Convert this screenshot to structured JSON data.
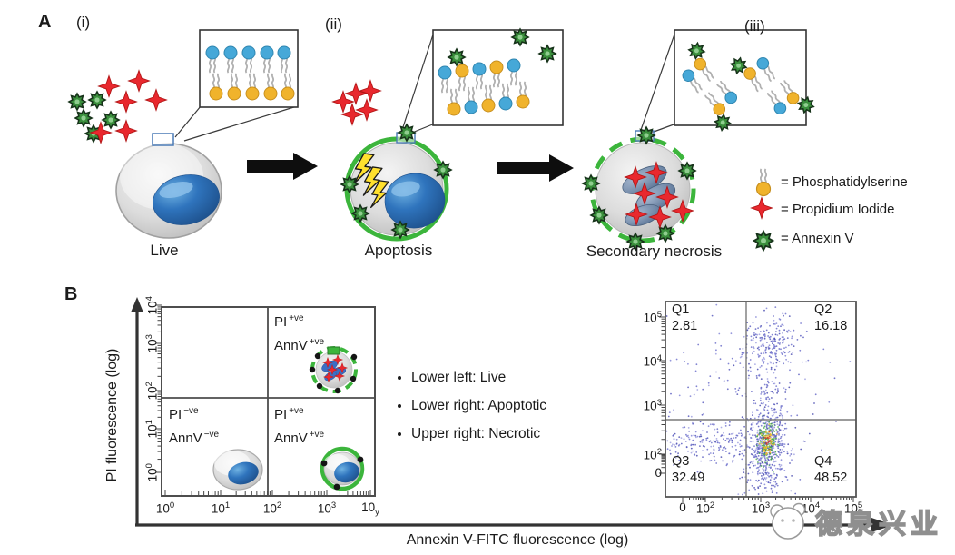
{
  "panel_a": {
    "label": "A",
    "stages": [
      {
        "numeral": "(i)",
        "name": "Live"
      },
      {
        "numeral": "(ii)",
        "name": "Apoptosis"
      },
      {
        "numeral": "(iii)",
        "name": "Secondary necrosis"
      }
    ],
    "legend": [
      {
        "symbol": "phosphatidylserine-icon",
        "label": "= Phosphatidylserine"
      },
      {
        "symbol": "propidium-iodide-icon",
        "label": "= Propidium Iodide"
      },
      {
        "symbol": "annexin-v-icon",
        "label": "= Annexin V"
      }
    ]
  },
  "panel_b": {
    "label": "B",
    "bullets": [
      "Lower left: Live",
      "Lower right: Apoptotic",
      "Upper right: Necrotic"
    ],
    "quadrant_labels": {
      "upper_right": {
        "l1": "PI",
        "l1s": "+ve",
        "l2": "AnnV",
        "l2s": "+ve"
      },
      "lower_left": {
        "l1": "PI",
        "l1s": "−ve",
        "l2": "AnnV",
        "l2s": "−ve"
      },
      "lower_right": {
        "l1": "PI",
        "l1s": "+ve",
        "l2": "AnnV",
        "l2s": "+ve"
      }
    }
  },
  "chart_data": [
    {
      "type": "table",
      "title": "Annexin V-FITC / PI quadrant schematic",
      "xlabel": "Annexin V-FITC fluorescence (log)",
      "ylabel": "PI fluorescence (log)",
      "xticks": [
        {
          "t": "10",
          "exp": "0"
        },
        {
          "t": "10",
          "exp": "1"
        },
        {
          "t": "10",
          "exp": "2"
        },
        {
          "t": "10",
          "exp": "3"
        },
        {
          "t": "10",
          "sub": "y"
        }
      ],
      "yticks": [
        {
          "t": "10",
          "exp": "4"
        },
        {
          "t": "10",
          "exp": "3"
        },
        {
          "t": "10",
          "exp": "2"
        },
        {
          "t": "10",
          "exp": "1"
        },
        {
          "t": "10",
          "exp": "0"
        }
      ],
      "quadrants": [
        {
          "position": "upper_right",
          "markers": "PI +ve, AnnV +ve",
          "cell": "necrotic"
        },
        {
          "position": "lower_left",
          "markers": "PI −ve, AnnV −ve",
          "cell": "live"
        },
        {
          "position": "lower_right",
          "markers": "PI +ve, AnnV +ve",
          "cell": "apoptotic"
        }
      ],
      "legend_position": "none",
      "grid": false
    },
    {
      "type": "scatter",
      "title": "Flow cytometry dot plot",
      "xticks": [
        {
          "t": "0"
        },
        {
          "t": "10",
          "exp": "2"
        },
        {
          "t": "10",
          "exp": "3"
        },
        {
          "t": "10",
          "exp": "4"
        },
        {
          "t": "10",
          "exp": "5"
        }
      ],
      "yticks": [
        {
          "t": "10",
          "exp": "5"
        },
        {
          "t": "10",
          "exp": "4"
        },
        {
          "t": "10",
          "exp": "3"
        },
        {
          "t": "10",
          "exp": "2"
        },
        {
          "t": "0"
        }
      ],
      "quadrant_stats": [
        {
          "name": "Q1",
          "value": "2.81"
        },
        {
          "name": "Q2",
          "value": "16.18"
        },
        {
          "name": "Q3",
          "value": "32.49"
        },
        {
          "name": "Q4",
          "value": "48.52"
        }
      ],
      "grid": false,
      "clusters": [
        {
          "x": 0.538,
          "y": 0.721,
          "sx": 0.052,
          "sy": 0.093,
          "n": 420,
          "color": "blue"
        },
        {
          "x": 0.533,
          "y": 0.726,
          "sx": 0.031,
          "sy": 0.056,
          "n": 130,
          "color": "green"
        },
        {
          "x": 0.533,
          "y": 0.726,
          "sx": 0.018,
          "sy": 0.033,
          "n": 55,
          "color": "yellow"
        },
        {
          "x": 0.533,
          "y": 0.721,
          "sx": 0.01,
          "sy": 0.019,
          "n": 16,
          "color": "red"
        },
        {
          "x": 0.552,
          "y": 0.209,
          "sx": 0.081,
          "sy": 0.065,
          "n": 170,
          "color": "blue"
        },
        {
          "x": 0.524,
          "y": 0.447,
          "sx": 0.052,
          "sy": 0.14,
          "n": 130,
          "color": "blue"
        },
        {
          "x": 0.214,
          "y": 0.73,
          "sx": 0.19,
          "sy": 0.051,
          "n": 230,
          "color": "blue"
        },
        {
          "x": 0.519,
          "y": 0.907,
          "sx": 0.067,
          "sy": 0.06,
          "n": 90,
          "color": "blue"
        },
        {
          "x": 0.248,
          "y": 0.363,
          "sx": 0.2,
          "sy": 0.177,
          "n": 80,
          "color": "blue"
        },
        {
          "x": 0.5,
          "y": 0.526,
          "sx": 0.262,
          "sy": 0.256,
          "n": 70,
          "color": "blue"
        }
      ],
      "colors": {
        "blue": [
          "#7072cc",
          "#8486d6",
          "#5b5dc0",
          "#9fa0e0",
          "#4a4cb0",
          "#6a6cc8"
        ],
        "green": [
          "#44a848",
          "#66bb55",
          "#3d9c44"
        ],
        "yellow": [
          "#e6c530",
          "#f0a828",
          "#e8d23c"
        ],
        "red": [
          "#d93225",
          "#e04a2a"
        ]
      }
    }
  ],
  "watermark": {
    "text": "德泉兴业"
  },
  "colors": {
    "annexin_green": "#3a8f3c",
    "membrane_green": "#3cb53c",
    "pi_red": "#e8282e",
    "ps_yellow": "#f0b32c",
    "lipid_blue": "#46a8d8",
    "nucleus_blue": "#2a6cb5"
  }
}
